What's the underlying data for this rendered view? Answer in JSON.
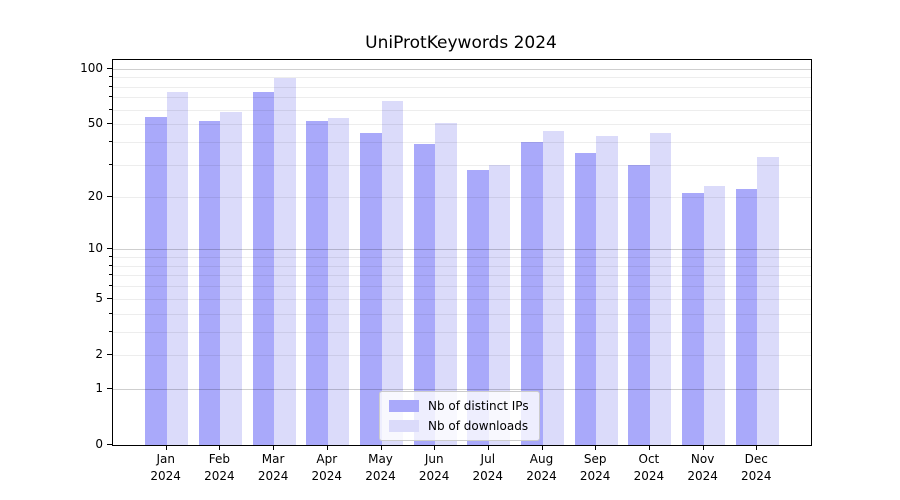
{
  "chart_data": {
    "type": "bar",
    "title": "UniProtKeywords 2024",
    "categories": [
      "Jan",
      "Feb",
      "Mar",
      "Apr",
      "May",
      "Jun",
      "Jul",
      "Aug",
      "Sep",
      "Oct",
      "Nov",
      "Dec"
    ],
    "category_year": "2024",
    "series": [
      {
        "name": "Nb of distinct IPs",
        "color": "#a9a9fa",
        "values": [
          55,
          52,
          75,
          52,
          45,
          39,
          28,
          40,
          35,
          30,
          21,
          22
        ]
      },
      {
        "name": "Nb of downloads",
        "color": "#dbdbfa",
        "values": [
          75,
          58,
          89,
          54,
          67,
          51,
          30,
          46,
          43,
          45,
          23,
          33
        ]
      }
    ],
    "yscale": "log1p",
    "ylim": [
      0,
      110
    ],
    "ytick_labels": [
      100,
      50,
      20,
      10,
      5,
      2,
      1,
      0
    ],
    "yticks_minor": [
      2,
      3,
      4,
      5,
      6,
      7,
      8,
      9,
      20,
      30,
      40,
      50,
      60,
      70,
      80,
      90
    ],
    "yticks_major_grid": [
      1,
      10,
      100
    ],
    "grid": true,
    "legend_position": "lower-center",
    "bar_group_width_ratio": 0.8,
    "colors": {
      "grid_minor": "#ececec",
      "grid_major": "#cfcfcf",
      "spine": "#000000",
      "text": "#000000",
      "background": "#ffffff"
    }
  }
}
